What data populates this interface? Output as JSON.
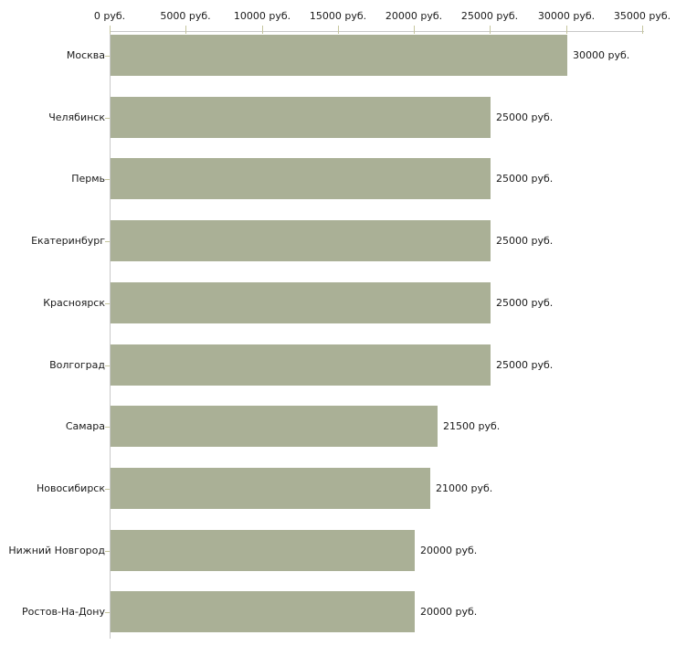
{
  "chart_data": {
    "type": "bar",
    "orientation": "horizontal",
    "title": "",
    "xlabel": "",
    "ylabel": "",
    "unit": "руб.",
    "categories": [
      "Москва",
      "Челябинск",
      "Пермь",
      "Екатеринбург",
      "Красноярск",
      "Волгоград",
      "Самара",
      "Новосибирск",
      "Нижний Новгород",
      "Ростов-На-Дону"
    ],
    "values": [
      30000,
      25000,
      25000,
      25000,
      25000,
      25000,
      21500,
      21000,
      20000,
      20000
    ],
    "value_labels": [
      "30000 руб.",
      "25000 руб.",
      "25000 руб.",
      "25000 руб.",
      "25000 руб.",
      "25000 руб.",
      "21500 руб.",
      "21000 руб.",
      "20000 руб.",
      "20000 руб."
    ],
    "xlim": [
      0,
      35000
    ],
    "x_ticks": [
      0,
      5000,
      10000,
      15000,
      20000,
      25000,
      30000,
      35000
    ],
    "x_tick_labels": [
      "0 руб.",
      "5000 руб.",
      "10000 руб.",
      "15000 руб.",
      "20000 руб.",
      "25000 руб.",
      "30000 руб.",
      "35000 руб."
    ],
    "grid": false,
    "legend": false,
    "axis_position": "top",
    "colors": {
      "bar": "#aab096",
      "axis_line": "#c8c8c8",
      "tick": "#c6c69e",
      "text": "#1a1a1a",
      "background": "#ffffff"
    }
  }
}
